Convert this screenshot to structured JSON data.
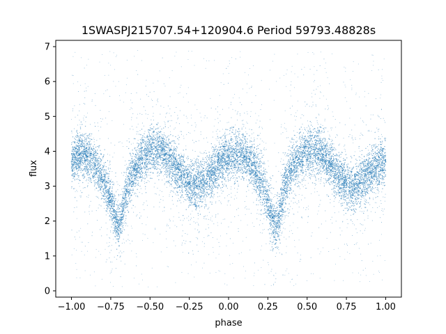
{
  "chart_data": {
    "type": "scatter",
    "title": "1SWASPJ215707.54+120904.6 Period 59793.48828s",
    "xlabel": "phase",
    "ylabel": "flux",
    "xlim": [
      -1.1,
      1.1
    ],
    "ylim": [
      -0.18,
      7.18
    ],
    "xticks": [
      -1.0,
      -0.75,
      -0.5,
      -0.25,
      0.0,
      0.25,
      0.5,
      0.75,
      1.0
    ],
    "xtick_labels": [
      "−1.00",
      "−0.75",
      "−0.50",
      "−0.25",
      "0.00",
      "0.25",
      "0.50",
      "0.75",
      "1.00"
    ],
    "yticks": [
      0,
      1,
      2,
      3,
      4,
      5,
      6,
      7
    ],
    "ytick_labels": [
      "0",
      "1",
      "2",
      "3",
      "4",
      "5",
      "6",
      "7"
    ],
    "grid": false,
    "point_color": "#1f77b4",
    "series": [
      {
        "x": [
          -1.0,
          -0.95,
          -0.9,
          -0.85,
          -0.8,
          -0.75,
          -0.72,
          -0.7,
          -0.68,
          -0.65,
          -0.6,
          -0.55,
          -0.5,
          -0.45,
          -0.4,
          -0.35,
          -0.3,
          -0.25,
          -0.2,
          -0.15,
          -0.1,
          -0.05,
          0.0,
          0.05,
          0.1,
          0.15,
          0.2,
          0.25,
          0.28,
          0.3,
          0.32,
          0.35,
          0.4,
          0.45,
          0.5,
          0.55,
          0.6,
          0.65,
          0.7,
          0.75,
          0.8,
          0.85,
          0.9,
          0.95,
          1.0
        ],
        "y": [
          3.7,
          3.9,
          3.85,
          3.6,
          3.2,
          2.6,
          2.1,
          1.85,
          2.1,
          2.9,
          3.5,
          3.8,
          4.0,
          4.05,
          3.9,
          3.6,
          3.3,
          3.05,
          3.0,
          3.1,
          3.4,
          3.7,
          3.85,
          3.9,
          3.85,
          3.6,
          3.2,
          2.6,
          2.1,
          1.85,
          2.1,
          2.9,
          3.5,
          3.8,
          4.0,
          4.05,
          3.9,
          3.6,
          3.3,
          3.05,
          3.0,
          3.1,
          3.4,
          3.6,
          3.7
        ]
      }
    ]
  }
}
